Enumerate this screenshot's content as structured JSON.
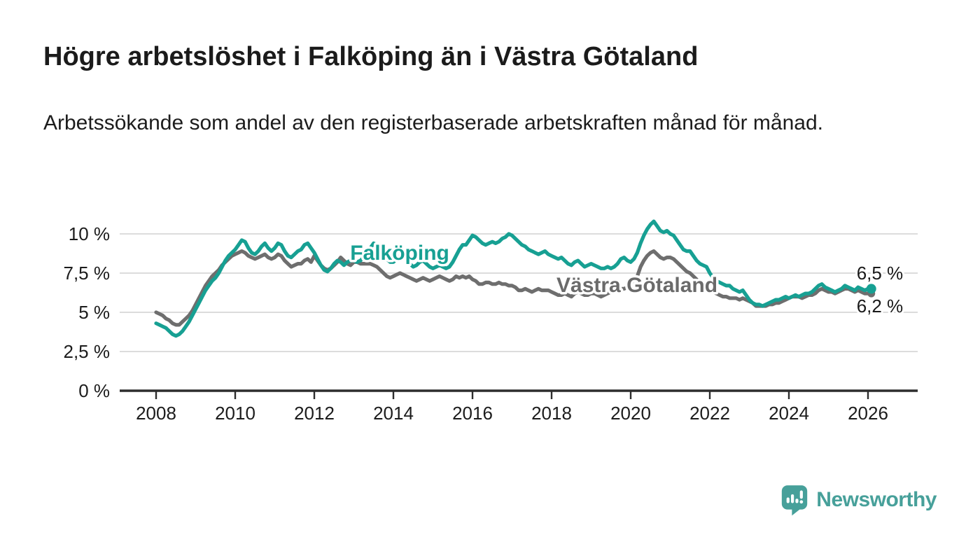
{
  "header": {
    "title": "Högre arbetslöshet i Falköping än i Västra Götaland",
    "subtitle": "Arbetssökande som andel av den registerbaserade arbetskraften månad för månad."
  },
  "footer": {
    "brand": "Newsworthy"
  },
  "chart_data": {
    "type": "line",
    "title": "Högre arbetslöshet i Falköping än i Västra Götaland",
    "subtitle": "Arbetssökande som andel av den registerbaserade arbetskraften månad för månad.",
    "grid": "horizontal",
    "legend_position": "inline-labels",
    "x_origin": 2008,
    "x_range": [
      2008.0,
      2026.17
    ],
    "ylim": [
      0,
      11.2
    ],
    "y_ticks": [
      {
        "value": 10,
        "label": "10 %"
      },
      {
        "value": 7.5,
        "label": "7,5 %"
      },
      {
        "value": 5,
        "label": "5 %"
      },
      {
        "value": 2.5,
        "label": "2,5 %"
      },
      {
        "value": 0,
        "label": "0 %"
      }
    ],
    "x_ticks": [
      {
        "value": 2008,
        "label": "2008"
      },
      {
        "value": 2010,
        "label": "2010"
      },
      {
        "value": 2012,
        "label": "2012"
      },
      {
        "value": 2014,
        "label": "2014"
      },
      {
        "value": 2016,
        "label": "2016"
      },
      {
        "value": 2018,
        "label": "2018"
      },
      {
        "value": 2020,
        "label": "2020"
      },
      {
        "value": 2022,
        "label": "2022"
      },
      {
        "value": 2024,
        "label": "2024"
      },
      {
        "value": 2026,
        "label": "2026"
      }
    ],
    "colors": {
      "grid": "#dcdcdc",
      "axis": "#2d2d2d",
      "text": "#1c1c1c",
      "accent": "#17a093",
      "muted": "#6e6e6e"
    },
    "series": [
      {
        "id": "falkoping",
        "name": "Falköping",
        "color": "#17a093",
        "start_year": 2008,
        "interval_months": 1,
        "end_label": "6,5 %",
        "end_value": 6.5,
        "values": [
          4.3,
          4.2,
          4.1,
          4.0,
          3.8,
          3.6,
          3.5,
          3.6,
          3.8,
          4.1,
          4.4,
          4.8,
          5.2,
          5.6,
          6.0,
          6.4,
          6.7,
          7.0,
          7.2,
          7.5,
          7.9,
          8.3,
          8.6,
          8.8,
          9.0,
          9.3,
          9.6,
          9.5,
          9.1,
          8.8,
          8.7,
          8.9,
          9.2,
          9.4,
          9.1,
          8.9,
          9.1,
          9.4,
          9.3,
          8.9,
          8.6,
          8.5,
          8.7,
          8.9,
          9.0,
          9.3,
          9.4,
          9.1,
          8.8,
          8.4,
          8.0,
          7.7,
          7.6,
          7.8,
          8.1,
          8.3,
          8.2,
          8.0,
          8.2,
          8.3,
          8.3,
          8.2,
          8.3,
          8.5,
          8.8,
          9.1,
          9.4,
          9.3,
          9.0,
          8.7,
          8.4,
          8.2,
          8.2,
          8.4,
          8.6,
          8.5,
          8.3,
          8.1,
          7.9,
          8.0,
          8.2,
          8.3,
          8.1,
          7.9,
          7.8,
          7.9,
          8.0,
          7.9,
          7.8,
          7.9,
          8.2,
          8.6,
          9.0,
          9.3,
          9.3,
          9.6,
          9.9,
          9.8,
          9.6,
          9.4,
          9.3,
          9.4,
          9.5,
          9.4,
          9.5,
          9.7,
          9.8,
          10.0,
          9.9,
          9.7,
          9.5,
          9.3,
          9.2,
          9.0,
          8.9,
          8.8,
          8.7,
          8.8,
          8.9,
          8.7,
          8.6,
          8.5,
          8.4,
          8.5,
          8.3,
          8.1,
          8.0,
          8.2,
          8.3,
          8.1,
          7.9,
          8.0,
          8.1,
          8.0,
          7.9,
          7.8,
          7.8,
          7.9,
          7.8,
          7.9,
          8.1,
          8.4,
          8.5,
          8.3,
          8.2,
          8.4,
          8.8,
          9.4,
          9.9,
          10.3,
          10.6,
          10.8,
          10.5,
          10.2,
          10.1,
          10.2,
          10.0,
          9.9,
          9.6,
          9.3,
          9.0,
          8.9,
          8.9,
          8.6,
          8.3,
          8.1,
          8.0,
          7.9,
          7.5,
          7.2,
          7.0,
          6.9,
          6.8,
          6.7,
          6.7,
          6.5,
          6.4,
          6.3,
          6.4,
          6.1,
          5.8,
          5.6,
          5.5,
          5.5,
          5.4,
          5.5,
          5.6,
          5.7,
          5.8,
          5.8,
          5.9,
          6.0,
          5.9,
          6.0,
          6.1,
          6.0,
          6.1,
          6.2,
          6.2,
          6.3,
          6.5,
          6.7,
          6.8,
          6.6,
          6.5,
          6.4,
          6.3,
          6.4,
          6.5,
          6.7,
          6.6,
          6.5,
          6.4,
          6.6,
          6.5,
          6.4,
          6.5,
          6.5
        ]
      },
      {
        "id": "vastra-gotaland",
        "name": "Västra Götaland",
        "color": "#6e6e6e",
        "start_year": 2008,
        "interval_months": 1,
        "end_label": "6,2 %",
        "end_value": 6.2,
        "values": [
          5.0,
          4.9,
          4.8,
          4.6,
          4.5,
          4.3,
          4.2,
          4.2,
          4.4,
          4.6,
          4.8,
          5.1,
          5.5,
          5.9,
          6.3,
          6.7,
          7.0,
          7.3,
          7.5,
          7.7,
          8.0,
          8.2,
          8.4,
          8.6,
          8.7,
          8.8,
          8.9,
          8.8,
          8.6,
          8.5,
          8.4,
          8.5,
          8.6,
          8.7,
          8.5,
          8.4,
          8.5,
          8.7,
          8.6,
          8.3,
          8.1,
          7.9,
          8.0,
          8.1,
          8.1,
          8.3,
          8.4,
          8.2,
          8.6,
          8.3,
          8.0,
          7.8,
          7.7,
          7.8,
          8.0,
          8.2,
          8.5,
          8.3,
          8.1,
          8.0,
          8.2,
          8.2,
          8.1,
          8.1,
          8.1,
          8.1,
          8.0,
          7.9,
          7.7,
          7.5,
          7.3,
          7.2,
          7.3,
          7.4,
          7.5,
          7.4,
          7.3,
          7.2,
          7.1,
          7.0,
          7.1,
          7.2,
          7.1,
          7.0,
          7.1,
          7.2,
          7.3,
          7.2,
          7.1,
          7.0,
          7.1,
          7.3,
          7.2,
          7.3,
          7.2,
          7.3,
          7.1,
          7.0,
          6.8,
          6.8,
          6.9,
          6.9,
          6.8,
          6.8,
          6.9,
          6.8,
          6.8,
          6.7,
          6.7,
          6.6,
          6.4,
          6.4,
          6.5,
          6.4,
          6.3,
          6.4,
          6.5,
          6.4,
          6.4,
          6.4,
          6.3,
          6.2,
          6.1,
          6.1,
          6.2,
          6.1,
          6.0,
          6.2,
          6.3,
          6.2,
          6.1,
          6.1,
          6.2,
          6.2,
          6.1,
          6.0,
          6.1,
          6.2,
          6.3,
          6.4,
          6.4,
          6.5,
          6.5,
          6.6,
          6.7,
          6.9,
          7.3,
          7.9,
          8.3,
          8.6,
          8.8,
          8.9,
          8.7,
          8.5,
          8.4,
          8.5,
          8.5,
          8.4,
          8.2,
          8.0,
          7.8,
          7.6,
          7.5,
          7.3,
          7.1,
          6.9,
          6.7,
          6.6,
          6.5,
          6.3,
          6.2,
          6.1,
          6.0,
          6.0,
          5.9,
          5.9,
          5.9,
          5.8,
          5.9,
          5.8,
          5.7,
          5.6,
          5.4,
          5.4,
          5.4,
          5.4,
          5.5,
          5.5,
          5.6,
          5.6,
          5.7,
          5.8,
          5.9,
          6.0,
          6.0,
          6.0,
          5.9,
          6.0,
          6.1,
          6.1,
          6.2,
          6.4,
          6.5,
          6.4,
          6.3,
          6.3,
          6.2,
          6.3,
          6.4,
          6.5,
          6.5,
          6.4,
          6.3,
          6.4,
          6.3,
          6.2,
          6.2,
          6.2
        ]
      }
    ],
    "annotations": [
      {
        "id": "series-label-falkoping",
        "cls": "series-label",
        "text": "Falköping",
        "year": 2014.16,
        "value": 8.35,
        "color": "#17a093"
      },
      {
        "id": "series-label-vastra-gotaland",
        "cls": "series-label",
        "text": "Västra Götaland",
        "year": 2020.16,
        "value": 6.3,
        "color": "#6a6a6a"
      },
      {
        "id": "end-value-label-falkoping",
        "cls": "value-label",
        "text": "6,5 %",
        "year": 2026.3,
        "value": 7.1,
        "color": "#1a1a1a"
      },
      {
        "id": "end-value-label-vastra-gotaland",
        "cls": "value-label",
        "text": "6,2 %",
        "year": 2026.3,
        "value": 5.0,
        "color": "#1a1a1a"
      }
    ]
  }
}
